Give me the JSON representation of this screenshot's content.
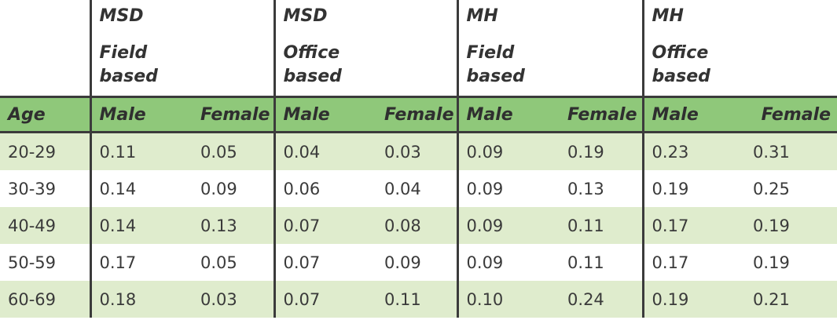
{
  "groups": [
    {
      "line1": "MSD",
      "line2": "Field",
      "line3": "based"
    },
    {
      "line1": "MSD",
      "line2": "Office",
      "line3": "based"
    },
    {
      "line1": "MH",
      "line2": "Field",
      "line3": "based"
    },
    {
      "line1": "MH",
      "line2": "Office",
      "line3": "based"
    }
  ],
  "columns": {
    "age": "Age",
    "male": "Male",
    "female": "Female"
  },
  "rows": [
    {
      "age": "20-29",
      "v": [
        "0.11",
        "0.05",
        "0.04",
        "0.03",
        "0.09",
        "0.19",
        "0.23",
        "0.31"
      ]
    },
    {
      "age": "30-39",
      "v": [
        "0.14",
        "0.09",
        "0.06",
        "0.04",
        "0.09",
        "0.13",
        "0.19",
        "0.25"
      ]
    },
    {
      "age": "40-49",
      "v": [
        "0.14",
        "0.13",
        "0.07",
        "0.08",
        "0.09",
        "0.11",
        "0.17",
        "0.19"
      ]
    },
    {
      "age": "50-59",
      "v": [
        "0.17",
        "0.05",
        "0.07",
        "0.09",
        "0.09",
        "0.11",
        "0.17",
        "0.19"
      ]
    },
    {
      "age": "60-69",
      "v": [
        "0.18",
        "0.03",
        "0.07",
        "0.11",
        "0.10",
        "0.24",
        "0.19",
        "0.21"
      ]
    }
  ],
  "colors": {
    "header_green": "#8fc87a",
    "stripe_green": "#dfeccd",
    "rule": "#3b3b3b"
  }
}
